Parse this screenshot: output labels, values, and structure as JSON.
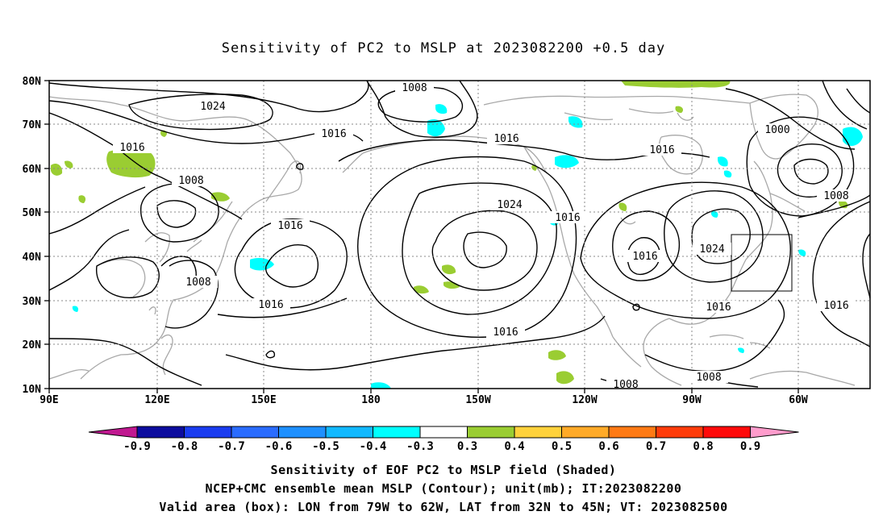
{
  "title": "Sensitivity of PC2 to MSLP at 2023082200 +0.5 day",
  "lat_labels": [
    "80N",
    "70N",
    "60N",
    "50N",
    "40N",
    "30N",
    "20N",
    "10N"
  ],
  "lon_labels": [
    "90E",
    "120E",
    "150E",
    "180",
    "150W",
    "120W",
    "90W",
    "60W"
  ],
  "contour_labels": [
    {
      "text": "1008"
    },
    {
      "text": "1024"
    },
    {
      "text": "1016"
    },
    {
      "text": "1016"
    },
    {
      "text": "1008"
    },
    {
      "text": "1016"
    },
    {
      "text": "1016"
    },
    {
      "text": "1024"
    },
    {
      "text": "1016"
    },
    {
      "text": "1000"
    },
    {
      "text": "1008"
    },
    {
      "text": "1016"
    },
    {
      "text": "1024"
    },
    {
      "text": "1016"
    },
    {
      "text": "1016"
    },
    {
      "text": "1008"
    },
    {
      "text": "1016"
    },
    {
      "text": "1016"
    },
    {
      "text": "1008"
    },
    {
      "text": "1008"
    }
  ],
  "colorbar": {
    "labels": [
      "-0.9",
      "-0.8",
      "-0.7",
      "-0.6",
      "-0.5",
      "-0.4",
      "-0.3",
      "0.3",
      "0.4",
      "0.5",
      "0.6",
      "0.7",
      "0.8",
      "0.9"
    ],
    "colors": [
      "#0c0c9e",
      "#1a3cf0",
      "#2a6cff",
      "#1e90ff",
      "#12b9ff",
      "#00ffff",
      "#ffffff",
      "#9acd32",
      "#ffd23c",
      "#ffaa28",
      "#ff7a14",
      "#ff3c0a",
      "#ff0a0a"
    ],
    "low_end_color": "#c01890",
    "high_end_color": "#ff9ccc"
  },
  "valid_box": {
    "lon_from": "79W",
    "lon_to": "62W",
    "lat_from": "32N",
    "lat_to": "45N"
  },
  "captions": [
    "Sensitivity of EOF PC2 to MSLP field (Shaded)",
    "NCEP+CMC ensemble mean MSLP (Contour); unit(mb); IT:2023082200",
    "Valid area (box): LON from 79W to 62W, LAT from 32N to 45N; VT: 2023082500"
  ]
}
